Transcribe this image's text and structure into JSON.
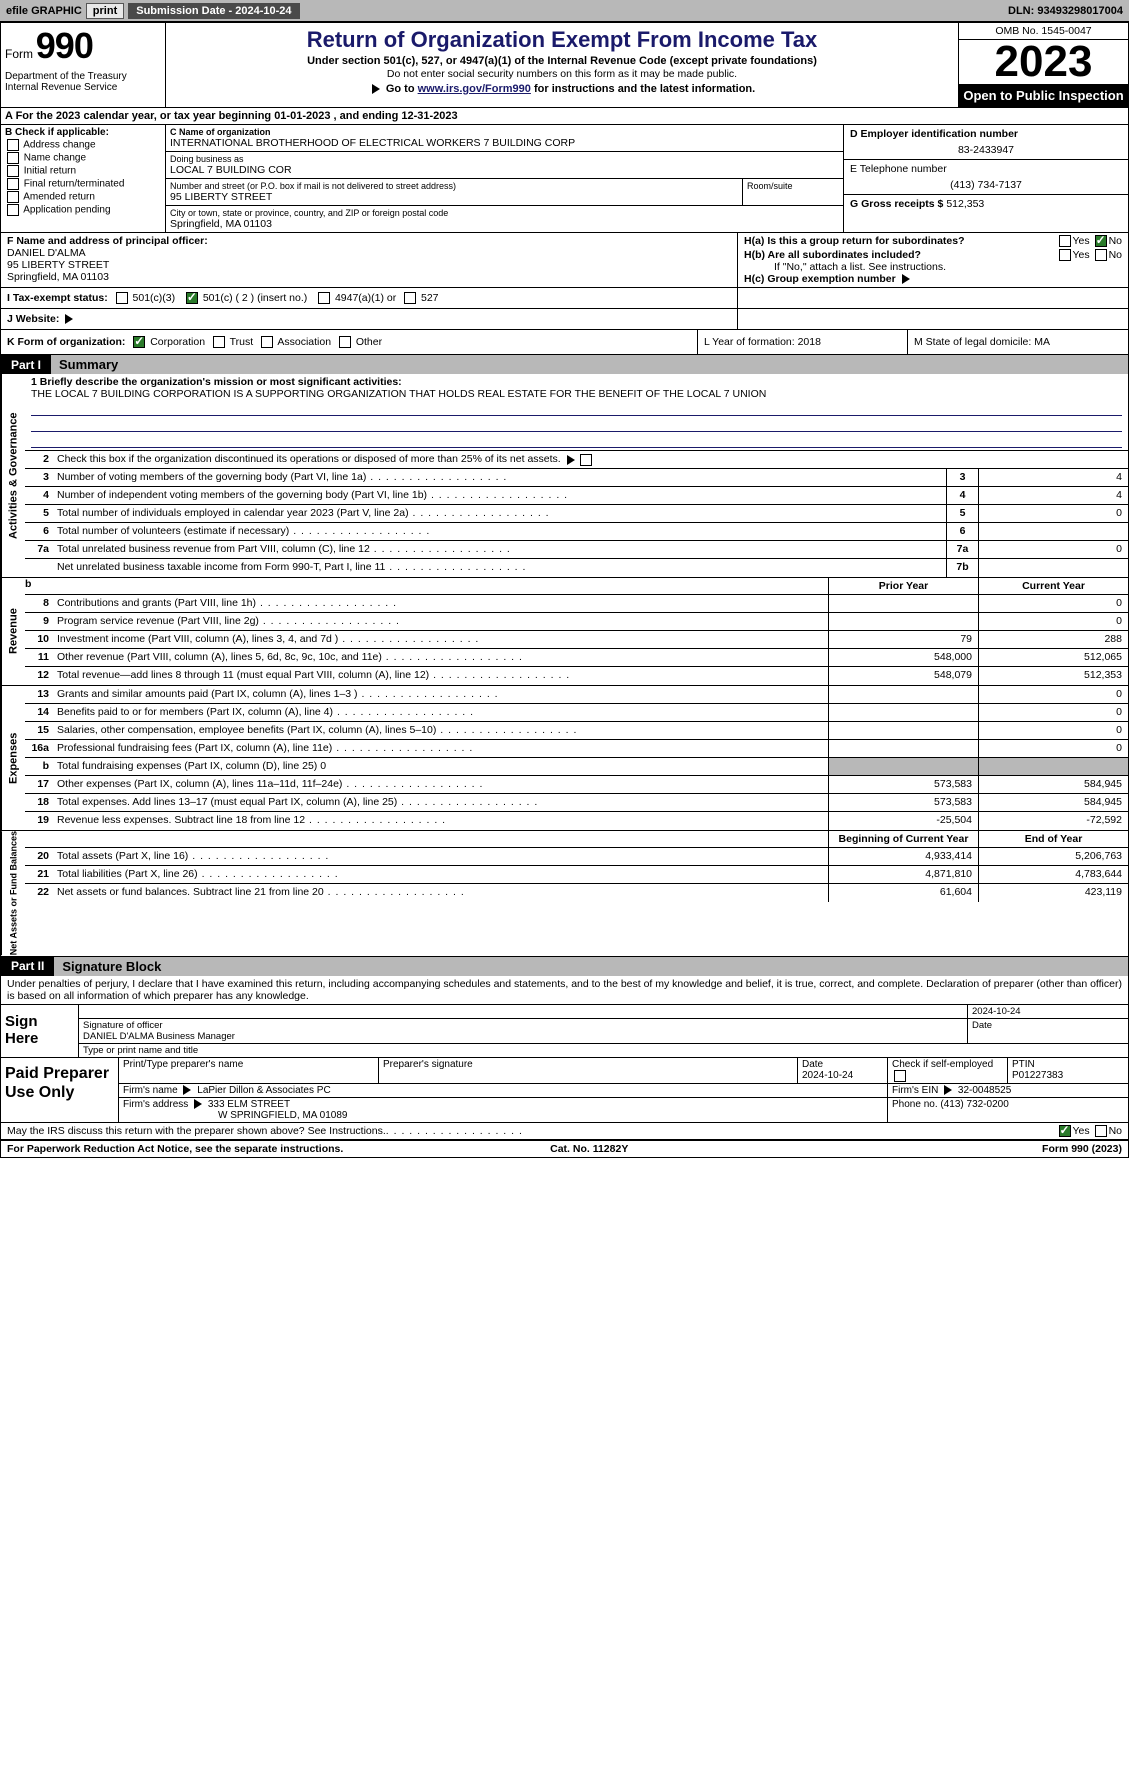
{
  "topbar": {
    "efile": "efile GRAPHIC",
    "print": "print",
    "submission": "Submission Date - 2024-10-24",
    "dln": "DLN: 93493298017004"
  },
  "header": {
    "form_word": "Form",
    "form_no": "990",
    "title": "Return of Organization Exempt From Income Tax",
    "sub1": "Under section 501(c), 527, or 4947(a)(1) of the Internal Revenue Code (except private foundations)",
    "sub2": "Do not enter social security numbers on this form as it may be made public.",
    "sub3_pre": "Go to ",
    "sub3_link": "www.irs.gov/Form990",
    "sub3_post": " for instructions and the latest information.",
    "omb": "OMB No. 1545-0047",
    "year": "2023",
    "open": "Open to Public Inspection",
    "dept": "Department of the Treasury Internal Revenue Service"
  },
  "row_a": "A For the 2023 calendar year, or tax year beginning 01-01-2023     , and ending 12-31-2023",
  "sec_b": {
    "label": "B Check if applicable:",
    "items": [
      "Address change",
      "Name change",
      "Initial return",
      "Final return/terminated",
      "Amended return",
      "Application pending"
    ]
  },
  "sec_c": {
    "name_lbl": "C Name of organization",
    "name": "INTERNATIONAL BROTHERHOOD OF ELECTRICAL WORKERS 7 BUILDING CORP",
    "dba_lbl": "Doing business as",
    "dba": "LOCAL 7 BUILDING COR",
    "addr_lbl": "Number and street (or P.O. box if mail is not delivered to street address)",
    "addr": "95 LIBERTY STREET",
    "room_lbl": "Room/suite",
    "city_lbl": "City or town, state or province, country, and ZIP or foreign postal code",
    "city": "Springfield, MA  01103"
  },
  "sec_d": {
    "ein_lbl": "D Employer identification number",
    "ein": "83-2433947",
    "tel_lbl": "E Telephone number",
    "tel": "(413) 734-7137",
    "gross_lbl": "G Gross receipts $",
    "gross": "512,353"
  },
  "sec_f": {
    "label": "F  Name and address of principal officer:",
    "name": "DANIEL D'ALMA",
    "addr1": "95 LIBERTY STREET",
    "addr2": "Springfield, MA  01103"
  },
  "sec_h": {
    "ha": "H(a)  Is this a group return for subordinates?",
    "hb": "H(b)  Are all subordinates included?",
    "hb_note": "If \"No,\" attach a list. See instructions.",
    "hc": "H(c)  Group exemption number",
    "yes": "Yes",
    "no": "No"
  },
  "sec_i": {
    "label": "I  Tax-exempt status:",
    "o1": "501(c)(3)",
    "o2": "501(c) ( 2 ) (insert no.)",
    "o3": "4947(a)(1) or",
    "o4": "527"
  },
  "sec_j": {
    "label": "J  Website:",
    "arrow": "▶"
  },
  "sec_k": {
    "label": "K Form of organization:",
    "o1": "Corporation",
    "o2": "Trust",
    "o3": "Association",
    "o4": "Other",
    "l": "L Year of formation: 2018",
    "m": "M State of legal domicile: MA"
  },
  "part1": {
    "tag": "Part I",
    "title": "Summary"
  },
  "mission": {
    "label": "1  Briefly describe the organization's mission or most significant activities:",
    "text": "THE LOCAL 7 BUILDING CORPORATION IS A SUPPORTING ORGANIZATION THAT HOLDS REAL ESTATE FOR THE BENEFIT OF THE LOCAL 7 UNION"
  },
  "gov_lines": [
    {
      "n": "2",
      "d": "Check this box      if the organization discontinued its operations or disposed of more than 25% of its net assets."
    },
    {
      "n": "3",
      "d": "Number of voting members of the governing body (Part VI, line 1a)",
      "box": "3",
      "v": "4"
    },
    {
      "n": "4",
      "d": "Number of independent voting members of the governing body (Part VI, line 1b)",
      "box": "4",
      "v": "4"
    },
    {
      "n": "5",
      "d": "Total number of individuals employed in calendar year 2023 (Part V, line 2a)",
      "box": "5",
      "v": "0"
    },
    {
      "n": "6",
      "d": "Total number of volunteers (estimate if necessary)",
      "box": "6",
      "v": ""
    },
    {
      "n": "7a",
      "d": "Total unrelated business revenue from Part VIII, column (C), line 12",
      "box": "7a",
      "v": "0"
    },
    {
      "n": "",
      "d": "Net unrelated business taxable income from Form 990-T, Part I, line 11",
      "box": "7b",
      "v": ""
    }
  ],
  "col_hdrs": {
    "prior": "Prior Year",
    "current": "Current Year",
    "begin": "Beginning of Current Year",
    "end": "End of Year"
  },
  "rev_lines": [
    {
      "n": "8",
      "d": "Contributions and grants (Part VIII, line 1h)",
      "p": "",
      "c": "0"
    },
    {
      "n": "9",
      "d": "Program service revenue (Part VIII, line 2g)",
      "p": "",
      "c": "0"
    },
    {
      "n": "10",
      "d": "Investment income (Part VIII, column (A), lines 3, 4, and 7d )",
      "p": "79",
      "c": "288"
    },
    {
      "n": "11",
      "d": "Other revenue (Part VIII, column (A), lines 5, 6d, 8c, 9c, 10c, and 11e)",
      "p": "548,000",
      "c": "512,065"
    },
    {
      "n": "12",
      "d": "Total revenue—add lines 8 through 11 (must equal Part VIII, column (A), line 12)",
      "p": "548,079",
      "c": "512,353"
    }
  ],
  "exp_lines": [
    {
      "n": "13",
      "d": "Grants and similar amounts paid (Part IX, column (A), lines 1–3 )",
      "p": "",
      "c": "0"
    },
    {
      "n": "14",
      "d": "Benefits paid to or for members (Part IX, column (A), line 4)",
      "p": "",
      "c": "0"
    },
    {
      "n": "15",
      "d": "Salaries, other compensation, employee benefits (Part IX, column (A), lines 5–10)",
      "p": "",
      "c": "0"
    },
    {
      "n": "16a",
      "d": "Professional fundraising fees (Part IX, column (A), line 11e)",
      "p": "",
      "c": "0"
    },
    {
      "n": "b",
      "d": "Total fundraising expenses (Part IX, column (D), line 25) 0",
      "shade": true
    },
    {
      "n": "17",
      "d": "Other expenses (Part IX, column (A), lines 11a–11d, 11f–24e)",
      "p": "573,583",
      "c": "584,945"
    },
    {
      "n": "18",
      "d": "Total expenses. Add lines 13–17 (must equal Part IX, column (A), line 25)",
      "p": "573,583",
      "c": "584,945"
    },
    {
      "n": "19",
      "d": "Revenue less expenses. Subtract line 18 from line 12",
      "p": "-25,504",
      "c": "-72,592"
    }
  ],
  "net_lines": [
    {
      "n": "20",
      "d": "Total assets (Part X, line 16)",
      "p": "4,933,414",
      "c": "5,206,763"
    },
    {
      "n": "21",
      "d": "Total liabilities (Part X, line 26)",
      "p": "4,871,810",
      "c": "4,783,644"
    },
    {
      "n": "22",
      "d": "Net assets or fund balances. Subtract line 21 from line 20",
      "p": "61,604",
      "c": "423,119"
    }
  ],
  "vtabs": {
    "gov": "Activities & Governance",
    "rev": "Revenue",
    "exp": "Expenses",
    "net": "Net Assets or Fund Balances"
  },
  "part2": {
    "tag": "Part II",
    "title": "Signature Block"
  },
  "sig_intro": "Under penalties of perjury, I declare that I have examined this return, including accompanying schedules and statements, and to the best of my knowledge and belief, it is true, correct, and complete. Declaration of preparer (other than officer) is based on all information of which preparer has any knowledge.",
  "sign": {
    "here": "Sign Here",
    "sig_lbl": "Signature of officer",
    "officer": "DANIEL D'ALMA  Business Manager",
    "type_lbl": "Type or print name and title",
    "date_lbl": "Date",
    "date": "2024-10-24"
  },
  "paid": {
    "label": "Paid Preparer Use Only",
    "print_lbl": "Print/Type preparer's name",
    "sig_lbl": "Preparer's signature",
    "date_lbl": "Date",
    "date": "2024-10-24",
    "check_lbl": "Check        if self-employed",
    "ptin_lbl": "PTIN",
    "ptin": "P01227383",
    "firm_name_lbl": "Firm's name",
    "firm_name": "LaPier Dillon & Associates PC",
    "firm_ein_lbl": "Firm's EIN",
    "firm_ein": "32-0048525",
    "firm_addr_lbl": "Firm's address",
    "firm_addr1": "333 ELM STREET",
    "firm_addr2": "W SPRINGFIELD, MA  01089",
    "phone_lbl": "Phone no.",
    "phone": "(413) 732-0200"
  },
  "irs_discuss": "May the IRS discuss this return with the preparer shown above? See Instructions.",
  "footer": {
    "left": "For Paperwork Reduction Act Notice, see the separate instructions.",
    "mid": "Cat. No. 11282Y",
    "right": "Form 990 (2023)"
  }
}
